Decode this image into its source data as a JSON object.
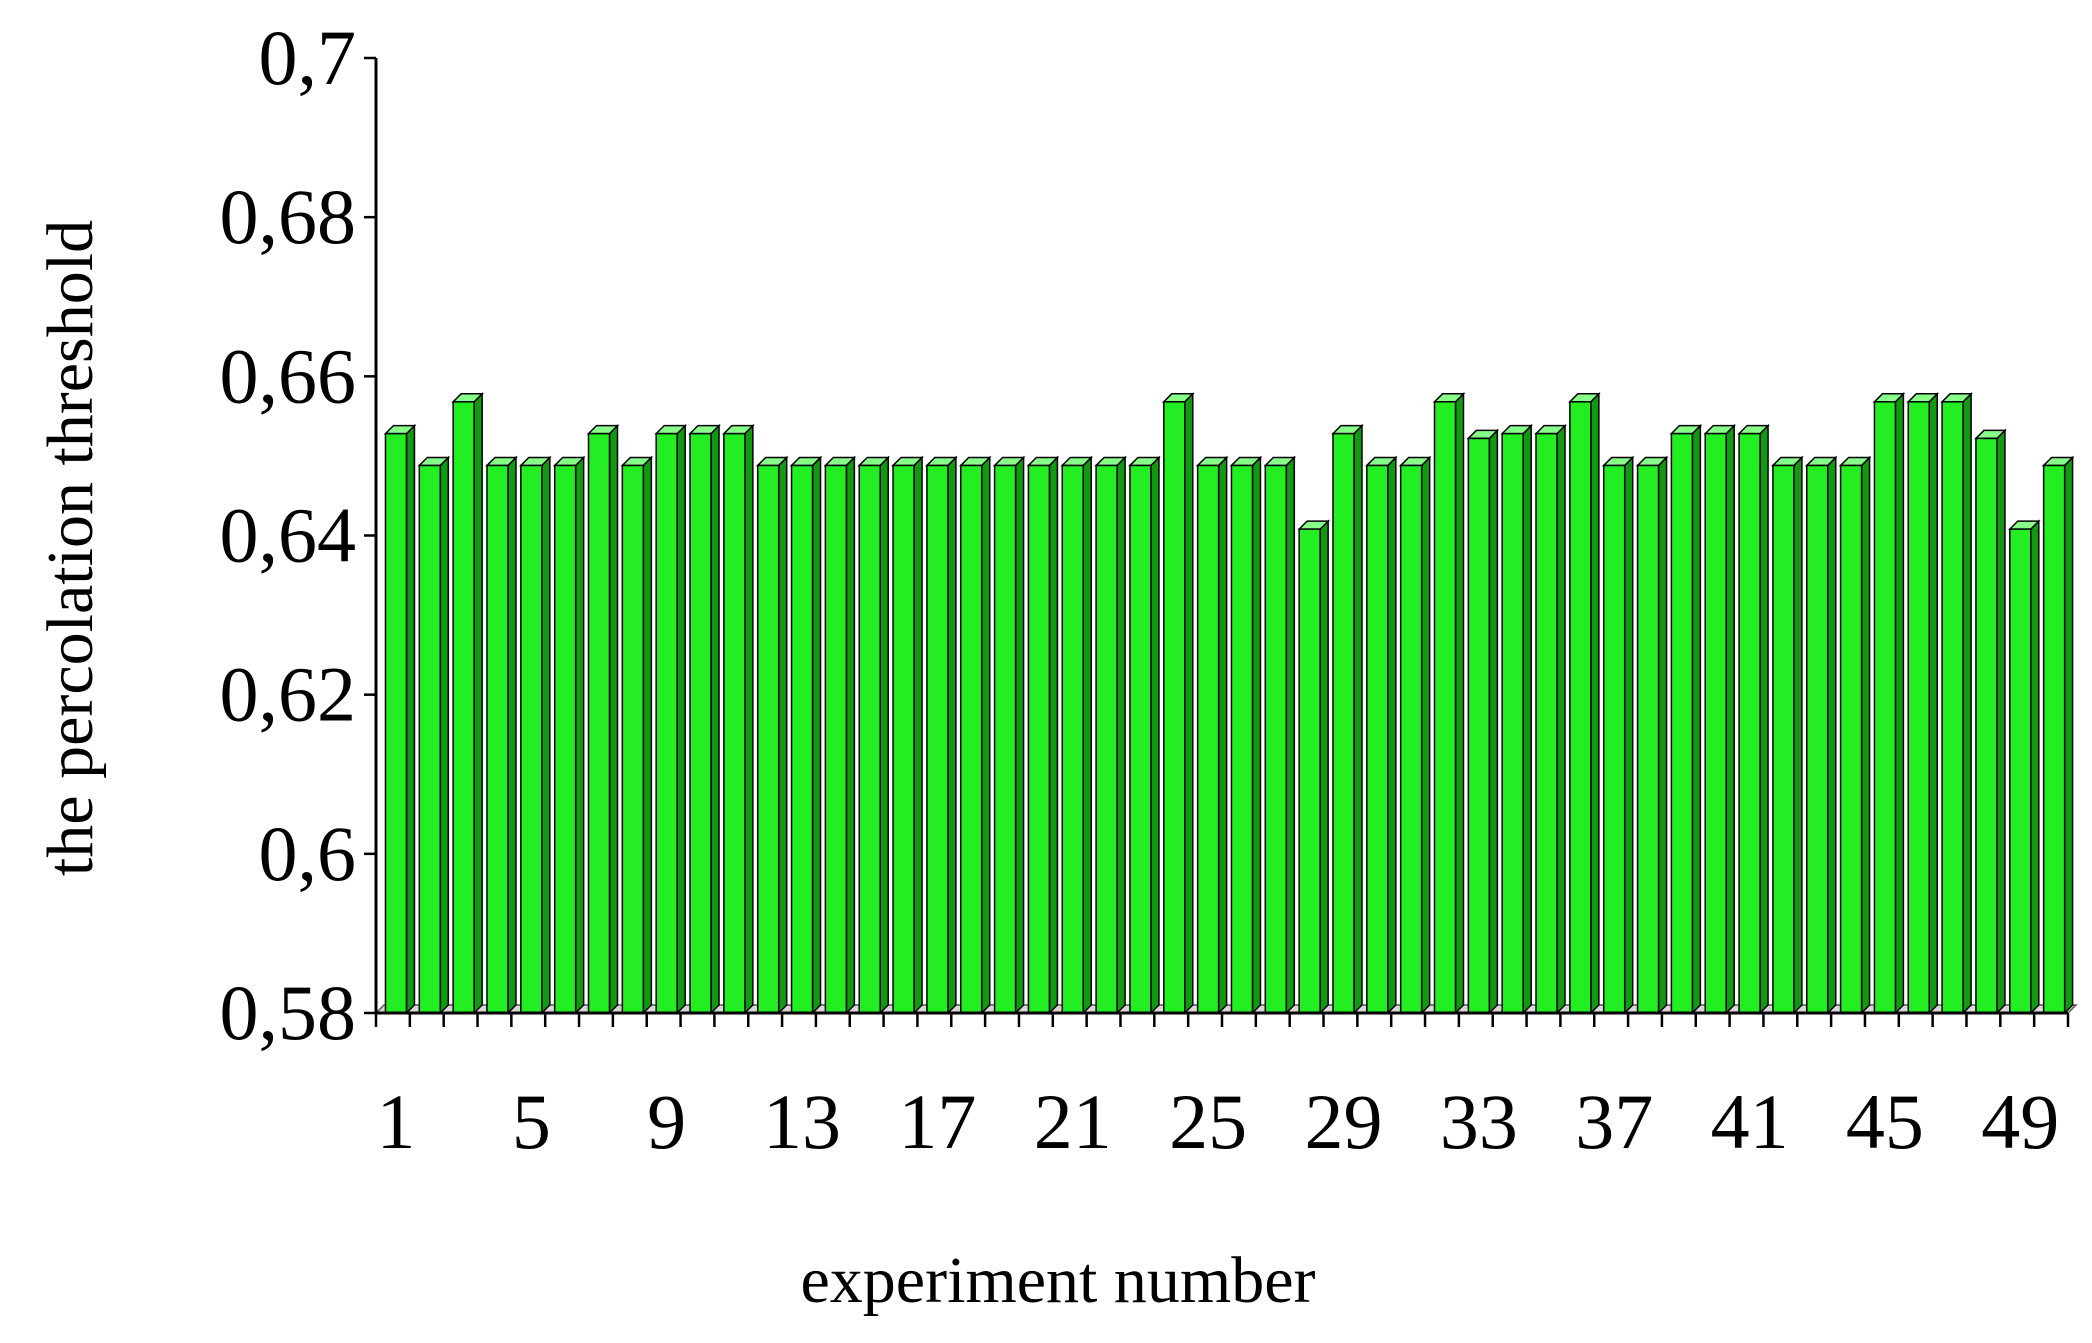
{
  "chart_data": {
    "type": "bar",
    "xlabel": "experiment number",
    "ylabel": "the percolation threshold",
    "ylim": [
      0.58,
      0.7
    ],
    "y_ticks": [
      {
        "value": 0.58,
        "label": "0,58"
      },
      {
        "value": 0.6,
        "label": "0,6"
      },
      {
        "value": 0.62,
        "label": "0,62"
      },
      {
        "value": 0.64,
        "label": "0,64"
      },
      {
        "value": 0.66,
        "label": "0,66"
      },
      {
        "value": 0.68,
        "label": "0,68"
      },
      {
        "value": 0.7,
        "label": "0,7"
      }
    ],
    "x_tick_labels": [
      "1",
      "5",
      "9",
      "13",
      "17",
      "21",
      "25",
      "29",
      "33",
      "37",
      "41",
      "45",
      "49"
    ],
    "categories": [
      1,
      2,
      3,
      4,
      5,
      6,
      7,
      8,
      9,
      10,
      11,
      12,
      13,
      14,
      15,
      16,
      17,
      18,
      19,
      20,
      21,
      22,
      23,
      24,
      25,
      26,
      27,
      28,
      29,
      30,
      31,
      32,
      33,
      34,
      35,
      36,
      37,
      38,
      39,
      40,
      41,
      42,
      43,
      44,
      45,
      46,
      47,
      48,
      49,
      50
    ],
    "values": [
      0.6528,
      0.6488,
      0.6568,
      0.6488,
      0.6488,
      0.6488,
      0.6528,
      0.6488,
      0.6528,
      0.6528,
      0.6528,
      0.6488,
      0.6488,
      0.6488,
      0.6488,
      0.6488,
      0.6488,
      0.6488,
      0.6488,
      0.6488,
      0.6488,
      0.6488,
      0.6488,
      0.6568,
      0.6488,
      0.6488,
      0.6488,
      0.6408,
      0.6528,
      0.6488,
      0.6488,
      0.6568,
      0.6522,
      0.6528,
      0.6528,
      0.6568,
      0.6488,
      0.6488,
      0.6528,
      0.6528,
      0.6528,
      0.6488,
      0.6488,
      0.6488,
      0.6568,
      0.6568,
      0.6568,
      0.6522,
      0.6408,
      0.6488
    ],
    "bar_color": "#22ee22",
    "bar_side_color": "#119911",
    "bar_top_color": "#88ff88",
    "grid": false,
    "legend": "none"
  }
}
